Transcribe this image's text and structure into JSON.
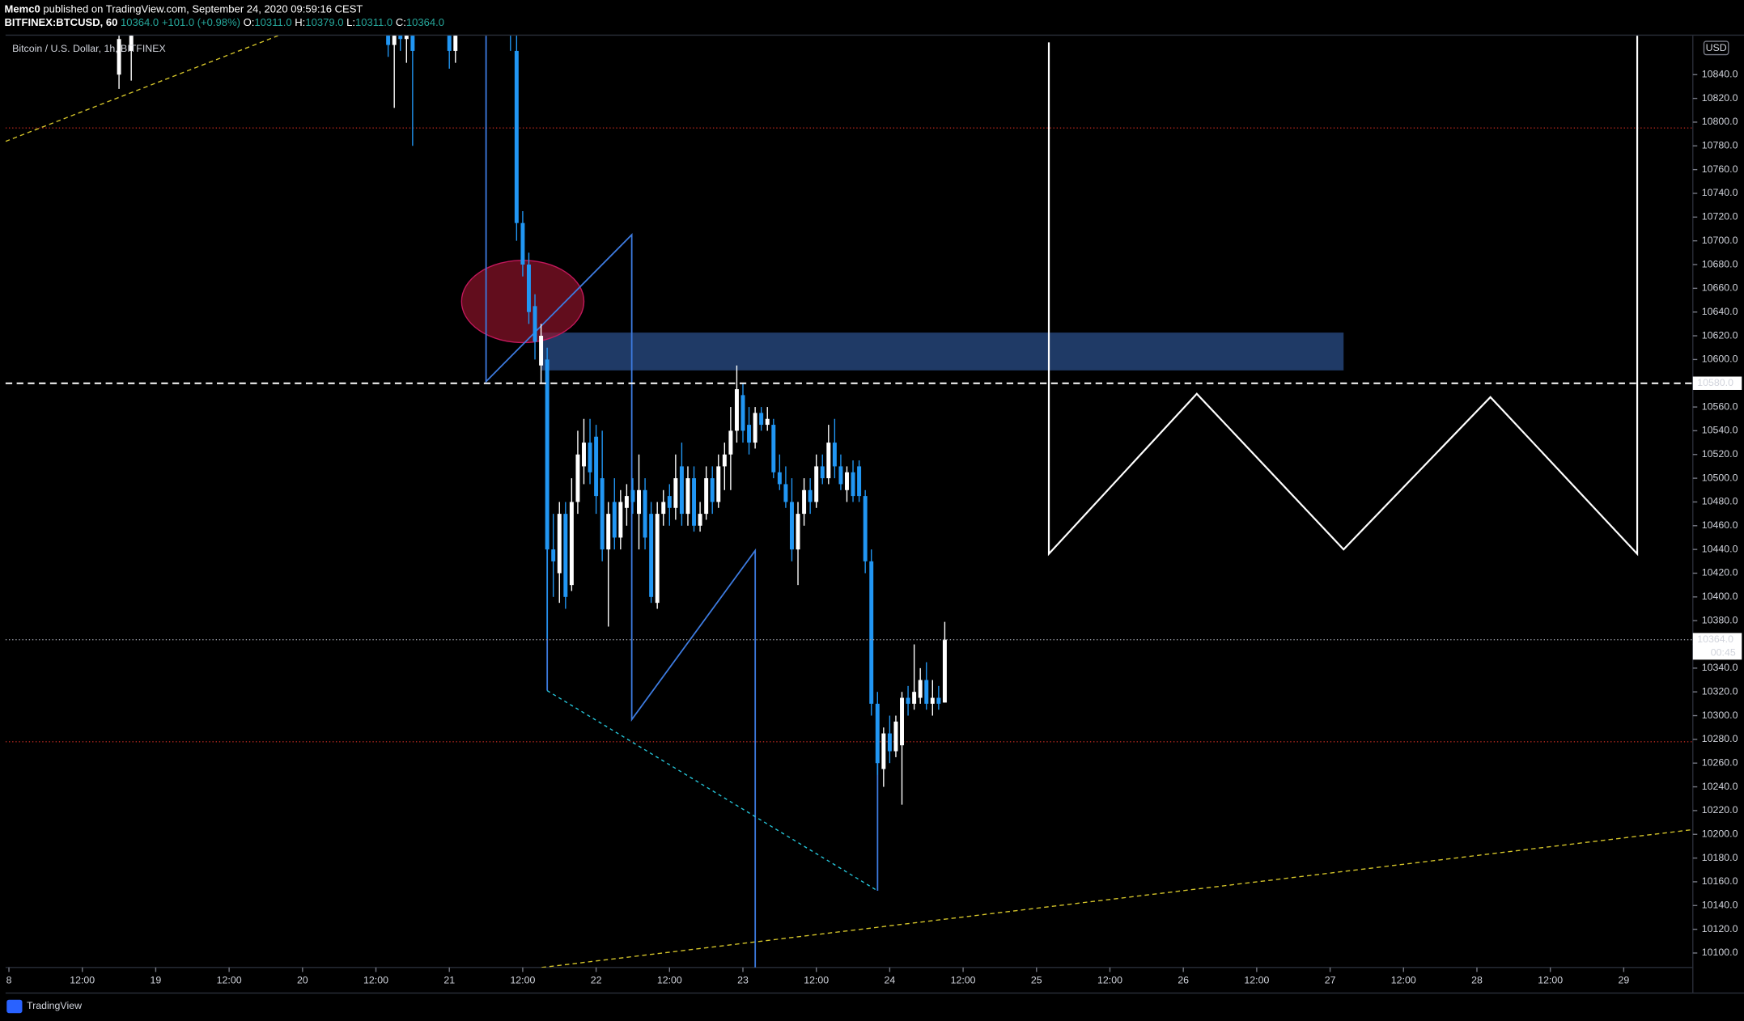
{
  "header": {
    "author": "Memc0",
    "published": "published on TradingView.com, September 24, 2020 09:59:16 CEST",
    "symbol": "BITFINEX:BTCUSD, 60",
    "last": "10364.0",
    "change": "+101.0 (+0.98%)",
    "ohlc": [
      {
        "label": "O:",
        "value": "10311.0"
      },
      {
        "label": "H:",
        "value": "10379.0"
      },
      {
        "label": "L:",
        "value": "10311.0"
      },
      {
        "label": "C:",
        "value": "10364.0"
      }
    ]
  },
  "footer": {
    "brand": "TradingView"
  },
  "chart_data": {
    "type": "candlestick",
    "legend": "Bitcoin / U.S. Dollar, 1h, BITFINEX",
    "currency": "USD",
    "up_color": "#ffffff",
    "down_color": "#2196f3",
    "grid": false,
    "xlim": [
      -0.55,
      275.3
    ],
    "ylim": [
      10087.8,
      10872.8
    ],
    "x": [
      18,
      20,
      62,
      63,
      64,
      65,
      66,
      72,
      73,
      82,
      83,
      84,
      85,
      86,
      87,
      88,
      89,
      90,
      91,
      92,
      93,
      94,
      95,
      96,
      97,
      98,
      99,
      100,
      101,
      102,
      103,
      104,
      105,
      106,
      107,
      108,
      109,
      110,
      111,
      112,
      113,
      114,
      115,
      116,
      117,
      118,
      119,
      120,
      121,
      122,
      123,
      124,
      125,
      126,
      127,
      128,
      129,
      130,
      131,
      132,
      133,
      134,
      135,
      136,
      137,
      138,
      139,
      140,
      141,
      142,
      143,
      144,
      145,
      146,
      147,
      148,
      149,
      150,
      151,
      152,
      153
    ],
    "open": [
      10840,
      10860,
      10880,
      10865,
      10875,
      10870,
      10885,
      10880,
      10860,
      10890,
      10860,
      10715,
      10680,
      10645,
      10595,
      10600,
      10440,
      10420,
      10470,
      10410,
      10480,
      10510,
      10530,
      10535,
      10500,
      10440,
      10480,
      10450,
      10475,
      10490,
      10470,
      10490,
      10470,
      10395,
      10470,
      10485,
      10475,
      10510,
      10470,
      10500,
      10460,
      10470,
      10500,
      10480,
      10510,
      10520,
      10540,
      10570,
      10545,
      10530,
      10555,
      10545,
      10545,
      10505,
      10495,
      10480,
      10440,
      10470,
      10490,
      10480,
      10510,
      10500,
      10530,
      10510,
      10490,
      10505,
      10510,
      10485,
      10430,
      10310,
      10255,
      10285,
      10270,
      10275,
      10315,
      10310,
      10315,
      10330,
      10310,
      10315,
      10311
    ],
    "high": [
      10880,
      10890,
      10895,
      10885,
      10890,
      10895,
      10890,
      10895,
      10890,
      10900,
      10880,
      10725,
      10690,
      10655,
      10630,
      10610,
      10470,
      10480,
      10480,
      10500,
      10540,
      10550,
      10550,
      10545,
      10540,
      10480,
      10500,
      10490,
      10495,
      10500,
      10520,
      10500,
      10480,
      10480,
      10490,
      10495,
      10520,
      10530,
      10510,
      10510,
      10480,
      10510,
      10510,
      10520,
      10530,
      10560,
      10595,
      10580,
      10560,
      10560,
      10560,
      10560,
      10550,
      10520,
      10510,
      10500,
      10480,
      10500,
      10500,
      10520,
      10520,
      10545,
      10550,
      10520,
      10510,
      10515,
      10515,
      10490,
      10440,
      10320,
      10290,
      10300,
      10300,
      10320,
      10325,
      10360,
      10340,
      10345,
      10330,
      10325,
      10379
    ],
    "low": [
      10828,
      10835,
      10855,
      10812,
      10860,
      10850,
      10780,
      10845,
      10850,
      10860,
      10700,
      10670,
      10630,
      10600,
      10580,
      10365,
      10400,
      10395,
      10390,
      10405,
      10470,
      10495,
      10495,
      10470,
      10430,
      10375,
      10440,
      10440,
      10460,
      10470,
      10440,
      10440,
      10395,
      10390,
      10460,
      10460,
      10465,
      10460,
      10460,
      10455,
      10455,
      10465,
      10470,
      10475,
      10490,
      10490,
      10530,
      10530,
      10520,
      10525,
      10540,
      10540,
      10500,
      10490,
      10475,
      10430,
      10410,
      10460,
      10470,
      10475,
      10495,
      10495,
      10500,
      10490,
      10480,
      10480,
      10480,
      10420,
      10300,
      10250,
      10240,
      10260,
      10265,
      10225,
      10300,
      10305,
      10310,
      10305,
      10300,
      10305,
      10311
    ],
    "close": [
      10870,
      10880,
      10865,
      10875,
      10870,
      10885,
      10860,
      10860,
      10880,
      10880,
      10715,
      10680,
      10640,
      10615,
      10620,
      10440,
      10430,
      10470,
      10400,
      10480,
      10520,
      10530,
      10505,
      10485,
      10440,
      10470,
      10450,
      10480,
      10485,
      10480,
      10490,
      10450,
      10400,
      10470,
      10480,
      10475,
      10500,
      10470,
      10500,
      10460,
      10470,
      10500,
      10480,
      10510,
      10520,
      10540,
      10575,
      10540,
      10530,
      10555,
      10545,
      10550,
      10505,
      10495,
      10480,
      10440,
      10470,
      10490,
      10480,
      10510,
      10500,
      10530,
      10510,
      10495,
      10505,
      10485,
      10485,
      10430,
      10310,
      10260,
      10285,
      10270,
      10295,
      10315,
      10310,
      10320,
      10330,
      10310,
      10315,
      10310,
      10364
    ],
    "yticks": [
      {
        "value": 10100,
        "label": "10100.0"
      },
      {
        "value": 10120,
        "label": "10120.0"
      },
      {
        "value": 10140,
        "label": "10140.0"
      },
      {
        "value": 10160,
        "label": "10160.0"
      },
      {
        "value": 10180,
        "label": "10180.0"
      },
      {
        "value": 10200,
        "label": "10200.0"
      },
      {
        "value": 10220,
        "label": "10220.0"
      },
      {
        "value": 10240,
        "label": "10240.0"
      },
      {
        "value": 10260,
        "label": "10260.0"
      },
      {
        "value": 10280,
        "label": "10280.0"
      },
      {
        "value": 10300,
        "label": "10300.0"
      },
      {
        "value": 10320,
        "label": "10320.0"
      },
      {
        "value": 10340,
        "label": "10340.0"
      },
      {
        "value": 10360,
        "label": "10360.0"
      },
      {
        "value": 10380,
        "label": "10380.0"
      },
      {
        "value": 10400,
        "label": "10400.0"
      },
      {
        "value": 10420,
        "label": "10420.0"
      },
      {
        "value": 10440,
        "label": "10440.0"
      },
      {
        "value": 10460,
        "label": "10460.0"
      },
      {
        "value": 10480,
        "label": "10480.0"
      },
      {
        "value": 10500,
        "label": "10500.0"
      },
      {
        "value": 10520,
        "label": "10520.0"
      },
      {
        "value": 10540,
        "label": "10540.0"
      },
      {
        "value": 10560,
        "label": "10560.0"
      },
      {
        "value": 10580,
        "label": "10580.0"
      },
      {
        "value": 10600,
        "label": "10600.0"
      },
      {
        "value": 10620,
        "label": "10620.0"
      },
      {
        "value": 10640,
        "label": "10640.0"
      },
      {
        "value": 10660,
        "label": "10660.0"
      },
      {
        "value": 10680,
        "label": "10680.0"
      },
      {
        "value": 10700,
        "label": "10700.0"
      },
      {
        "value": 10720,
        "label": "10720.0"
      },
      {
        "value": 10740,
        "label": "10740.0"
      },
      {
        "value": 10760,
        "label": "10760.0"
      },
      {
        "value": 10780,
        "label": "10780.0"
      },
      {
        "value": 10800,
        "label": "10800.0"
      },
      {
        "value": 10820,
        "label": "10820.0"
      },
      {
        "value": 10840,
        "label": "10840.0"
      }
    ],
    "xticks": [
      {
        "value": 0,
        "label": "8"
      },
      {
        "value": 12,
        "label": "12:00"
      },
      {
        "value": 24,
        "label": "19"
      },
      {
        "value": 36,
        "label": "12:00"
      },
      {
        "value": 48,
        "label": "20"
      },
      {
        "value": 60,
        "label": "12:00"
      },
      {
        "value": 72,
        "label": "21"
      },
      {
        "value": 84,
        "label": "12:00"
      },
      {
        "value": 96,
        "label": "22"
      },
      {
        "value": 108,
        "label": "12:00"
      },
      {
        "value": 120,
        "label": "23"
      },
      {
        "value": 132,
        "label": "12:00"
      },
      {
        "value": 144,
        "label": "24"
      },
      {
        "value": 156,
        "label": "12:00"
      },
      {
        "value": 168,
        "label": "25"
      },
      {
        "value": 180,
        "label": "12:00"
      },
      {
        "value": 192,
        "label": "26"
      },
      {
        "value": 204,
        "label": "12:00"
      },
      {
        "value": 216,
        "label": "27"
      },
      {
        "value": 228,
        "label": "12:00"
      },
      {
        "value": 240,
        "label": "28"
      },
      {
        "value": 252,
        "label": "12:00"
      },
      {
        "value": 264,
        "label": "29"
      }
    ],
    "price_line": {
      "value": 10580,
      "label": "10580.0"
    },
    "last_price": {
      "value": 10364,
      "label": "10364.0",
      "countdown": "00:45"
    }
  }
}
